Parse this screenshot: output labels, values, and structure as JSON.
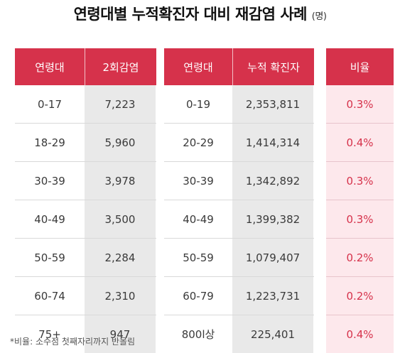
{
  "title": {
    "main": "연령대별 누적확진자 대비 재감염 사례",
    "unit": "(명)"
  },
  "table1": {
    "headers": [
      "연령대",
      "2회감염"
    ],
    "rows": [
      [
        "0-17",
        "7,223"
      ],
      [
        "18-29",
        "5,960"
      ],
      [
        "30-39",
        "3,978"
      ],
      [
        "40-49",
        "3,500"
      ],
      [
        "50-59",
        "2,284"
      ],
      [
        "60-74",
        "2,310"
      ],
      [
        "75+",
        "947"
      ]
    ]
  },
  "table2": {
    "headers": [
      "연령대",
      "누적 확진자"
    ],
    "rows": [
      [
        "0-19",
        "2,353,811"
      ],
      [
        "20-29",
        "1,414,314"
      ],
      [
        "30-39",
        "1,342,892"
      ],
      [
        "40-49",
        "1,399,382"
      ],
      [
        "50-59",
        "1,079,407"
      ],
      [
        "60-79",
        "1,223,731"
      ],
      [
        "800l상",
        "225,401"
      ]
    ]
  },
  "table3": {
    "header": "비율",
    "rows": [
      "0.3%",
      "0.4%",
      "0.3%",
      "0.3%",
      "0.2%",
      "0.2%",
      "0.4%"
    ]
  },
  "footnote": "*비율: 소수점 첫째자리까지 반올림",
  "colors": {
    "accent": "#d6324b",
    "shade": "#e9e9e9",
    "ratio_bg": "#fde8ec"
  }
}
